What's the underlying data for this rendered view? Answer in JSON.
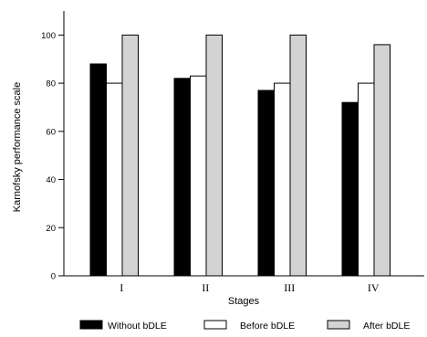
{
  "chart_data": {
    "type": "bar",
    "categories": [
      "I",
      "II",
      "III",
      "IV"
    ],
    "series": [
      {
        "name": "Without bDLE",
        "color": "#000000",
        "values": [
          88,
          82,
          77,
          72
        ]
      },
      {
        "name": "Before bDLE",
        "color": "#ffffff",
        "values": [
          80,
          83,
          80,
          80
        ]
      },
      {
        "name": "After bDLE",
        "color": "#d3d3d3",
        "values": [
          100,
          100,
          100,
          96
        ]
      }
    ],
    "xlabel": "Stages",
    "ylabel": "Karnofsky performance scale",
    "ylim": [
      0,
      110
    ],
    "yticks": [
      "0",
      "20",
      "40",
      "60",
      "80",
      "100"
    ],
    "grid": false,
    "legend_position": "bottom"
  }
}
